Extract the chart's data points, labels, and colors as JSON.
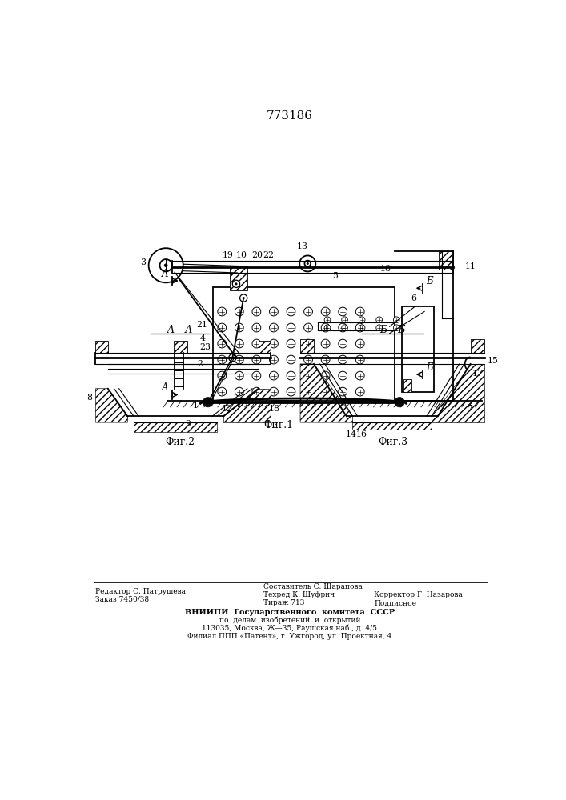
{
  "title": "773186",
  "bg_color": "#ffffff",
  "lc": "#000000",
  "fig1_label": "Фиг.1",
  "fig2_label": "Фиг.2",
  "fig3_label": "Фиг.3",
  "section_aa": "A – A",
  "section_bb": "Б – Б",
  "footer_col1_line1": "Редактор С. Патрушева",
  "footer_col1_line2": "Заказ 7450/38",
  "footer_col2_line1": "Составитель С. Шарапова",
  "footer_col2_line2": "Техред К. Шуфрич",
  "footer_col2_line3": "Тираж 713",
  "footer_col3_line1": "Корректор Г. Назарова",
  "footer_col3_line2": "Подписное",
  "footer_vniip1": "ВНИИПИ  Государственного  комитета  СССР",
  "footer_vniip2": "по  делам  изобретений  и  открытий",
  "footer_vniip3": "113035, Москва, Ж—35, Раушская наб., д. 4/5",
  "footer_vniip4": "Филиал ППП «Патент», г. Ужгород, ул. Проектная, 4"
}
